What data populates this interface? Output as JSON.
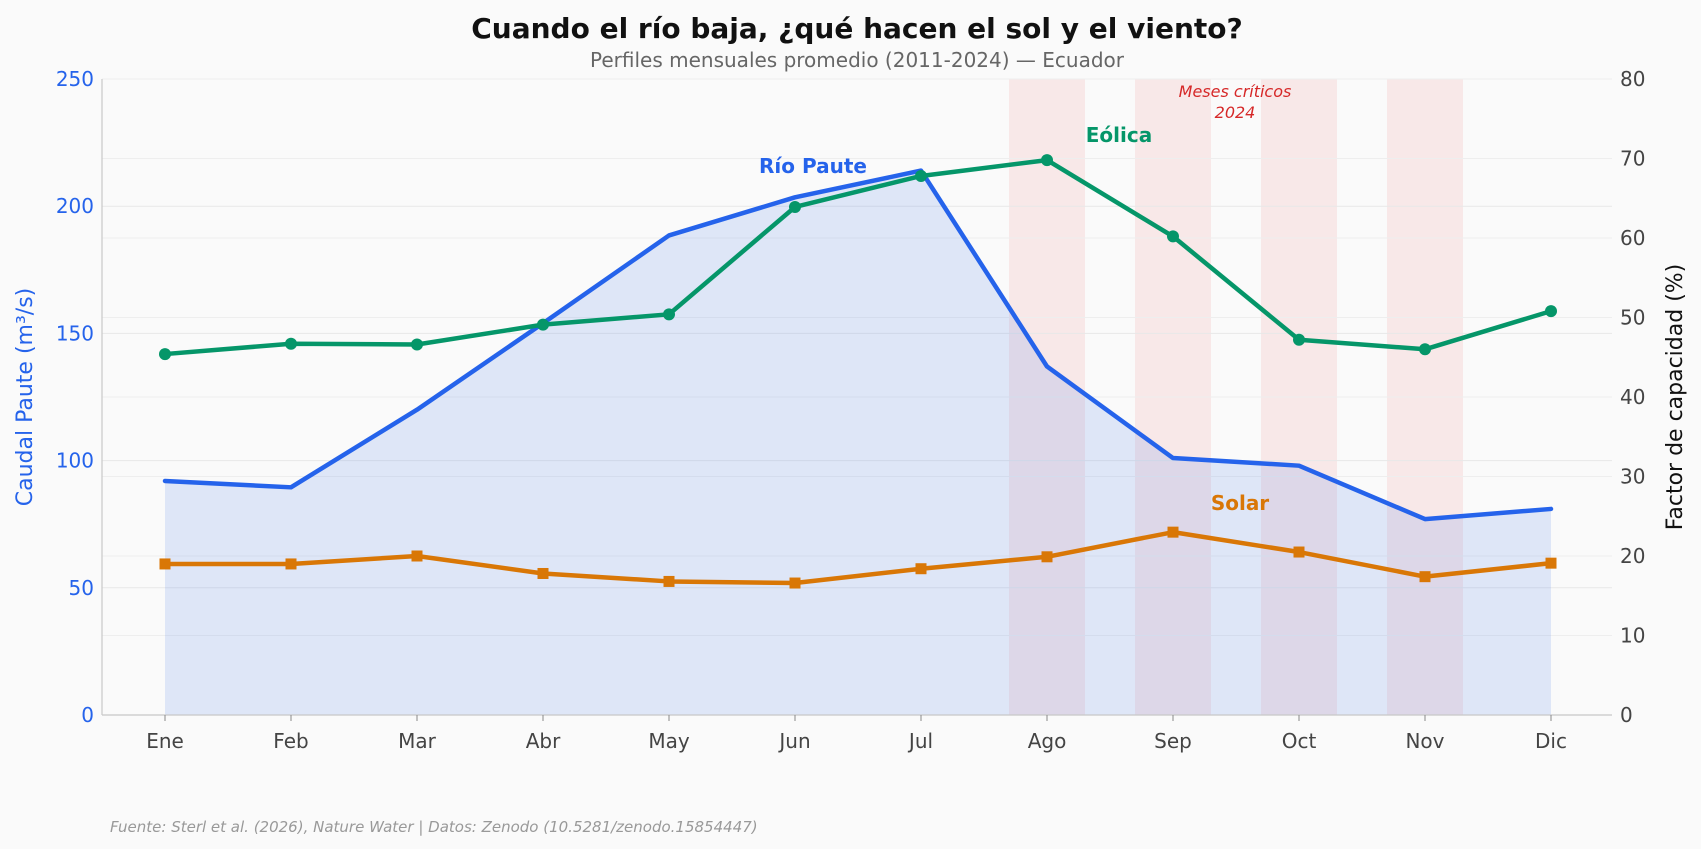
{
  "chart_data": {
    "type": "line",
    "title": "Cuando el río baja, ¿qué hacen el sol y el viento?",
    "subtitle": "Perfiles mensuales promedio (2011-2024) — Ecuador",
    "categories": [
      "Ene",
      "Feb",
      "Mar",
      "Abr",
      "May",
      "Jun",
      "Jul",
      "Ago",
      "Sep",
      "Oct",
      "Nov",
      "Dic"
    ],
    "left_axis": {
      "label": "Caudal Paute (m³/s)",
      "ylim": [
        0,
        250
      ],
      "ticks": [
        "0",
        "50",
        "100",
        "150",
        "200",
        "250"
      ]
    },
    "right_axis": {
      "label": "Factor de capacidad (%)",
      "ylim": [
        0,
        80
      ],
      "ticks": [
        "0",
        "10",
        "20",
        "30",
        "40",
        "50",
        "60",
        "70",
        "80"
      ]
    },
    "series": [
      {
        "name": "Río Paute",
        "axis": "left",
        "color": "#2563eb",
        "fill": true,
        "values": [
          92,
          89.5,
          120,
          154,
          188.5,
          203.5,
          214,
          137,
          101,
          98,
          77,
          81
        ]
      },
      {
        "name": "Eólica",
        "axis": "right",
        "color": "#059669",
        "marker": "circle",
        "values": [
          45.4,
          46.7,
          46.6,
          49.1,
          50.4,
          63.9,
          67.8,
          69.8,
          60.2,
          47.2,
          46.0,
          50.8
        ]
      },
      {
        "name": "Solar",
        "axis": "right",
        "color": "#d97706",
        "marker": "square",
        "values": [
          19.0,
          19.0,
          20.0,
          17.8,
          16.8,
          16.6,
          18.4,
          19.9,
          23.0,
          20.5,
          17.4,
          19.1
        ]
      }
    ],
    "highlight_months": [
      "Ago",
      "Sep",
      "Oct",
      "Nov"
    ],
    "highlight_color": "#f6dcdc",
    "annotation": [
      "Meses críticos",
      "2024"
    ],
    "source": "Fuente: Sterl et al. (2026), Nature Water | Datos: Zenodo (10.5281/zenodo.15854447)"
  }
}
